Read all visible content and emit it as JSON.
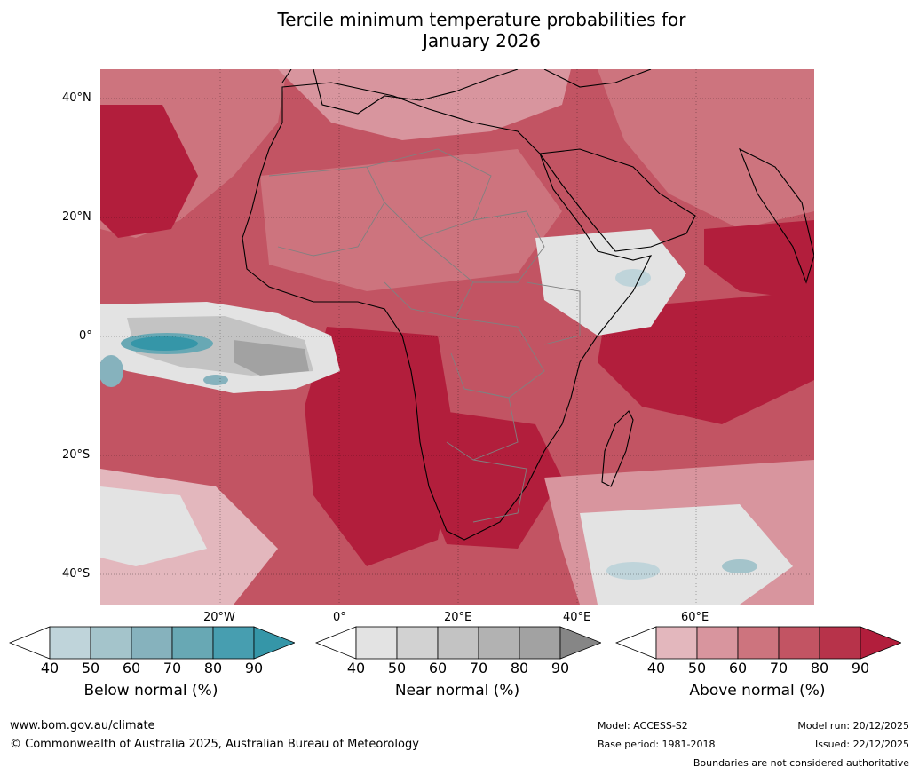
{
  "title": {
    "line1": "Tercile minimum temperature probabilities for",
    "line2": "January 2026"
  },
  "map": {
    "lat_labels": [
      "40°N",
      "20°N",
      "0°",
      "20°S",
      "40°S"
    ],
    "lon_labels": [
      "20°W",
      "0°",
      "20°E",
      "40°E",
      "60°E"
    ]
  },
  "colorbars": [
    {
      "label": "Below normal (%)",
      "ticks": [
        "40",
        "50",
        "60",
        "70",
        "80",
        "90"
      ],
      "colors": [
        "#ffffff",
        "#bfd4da",
        "#a4c4cb",
        "#86b2bd",
        "#68a8b4",
        "#479eb0",
        "#3596a8"
      ]
    },
    {
      "label": "Near normal (%)",
      "ticks": [
        "40",
        "50",
        "60",
        "70",
        "80",
        "90"
      ],
      "colors": [
        "#ffffff",
        "#e3e3e3",
        "#d2d2d2",
        "#c3c3c3",
        "#b2b2b2",
        "#a2a2a2",
        "#868686"
      ]
    },
    {
      "label": "Above normal (%)",
      "ticks": [
        "40",
        "50",
        "60",
        "70",
        "80",
        "90"
      ],
      "colors": [
        "#ffffff",
        "#e3b7bd",
        "#d8959e",
        "#cd747e",
        "#c25463",
        "#b7334a",
        "#b21e3c"
      ]
    }
  ],
  "footer": {
    "website": "www.bom.gov.au/climate",
    "copyright": "© Commonwealth of Australia 2025, Australian Bureau of Meteorology",
    "model": "Model: ACCESS-S2",
    "base_period": "Base period: 1981-2018",
    "model_run": "Model run: 20/12/2025",
    "issued": "Issued: 22/12/2025",
    "disclaimer": "Boundaries are not considered authoritative"
  }
}
